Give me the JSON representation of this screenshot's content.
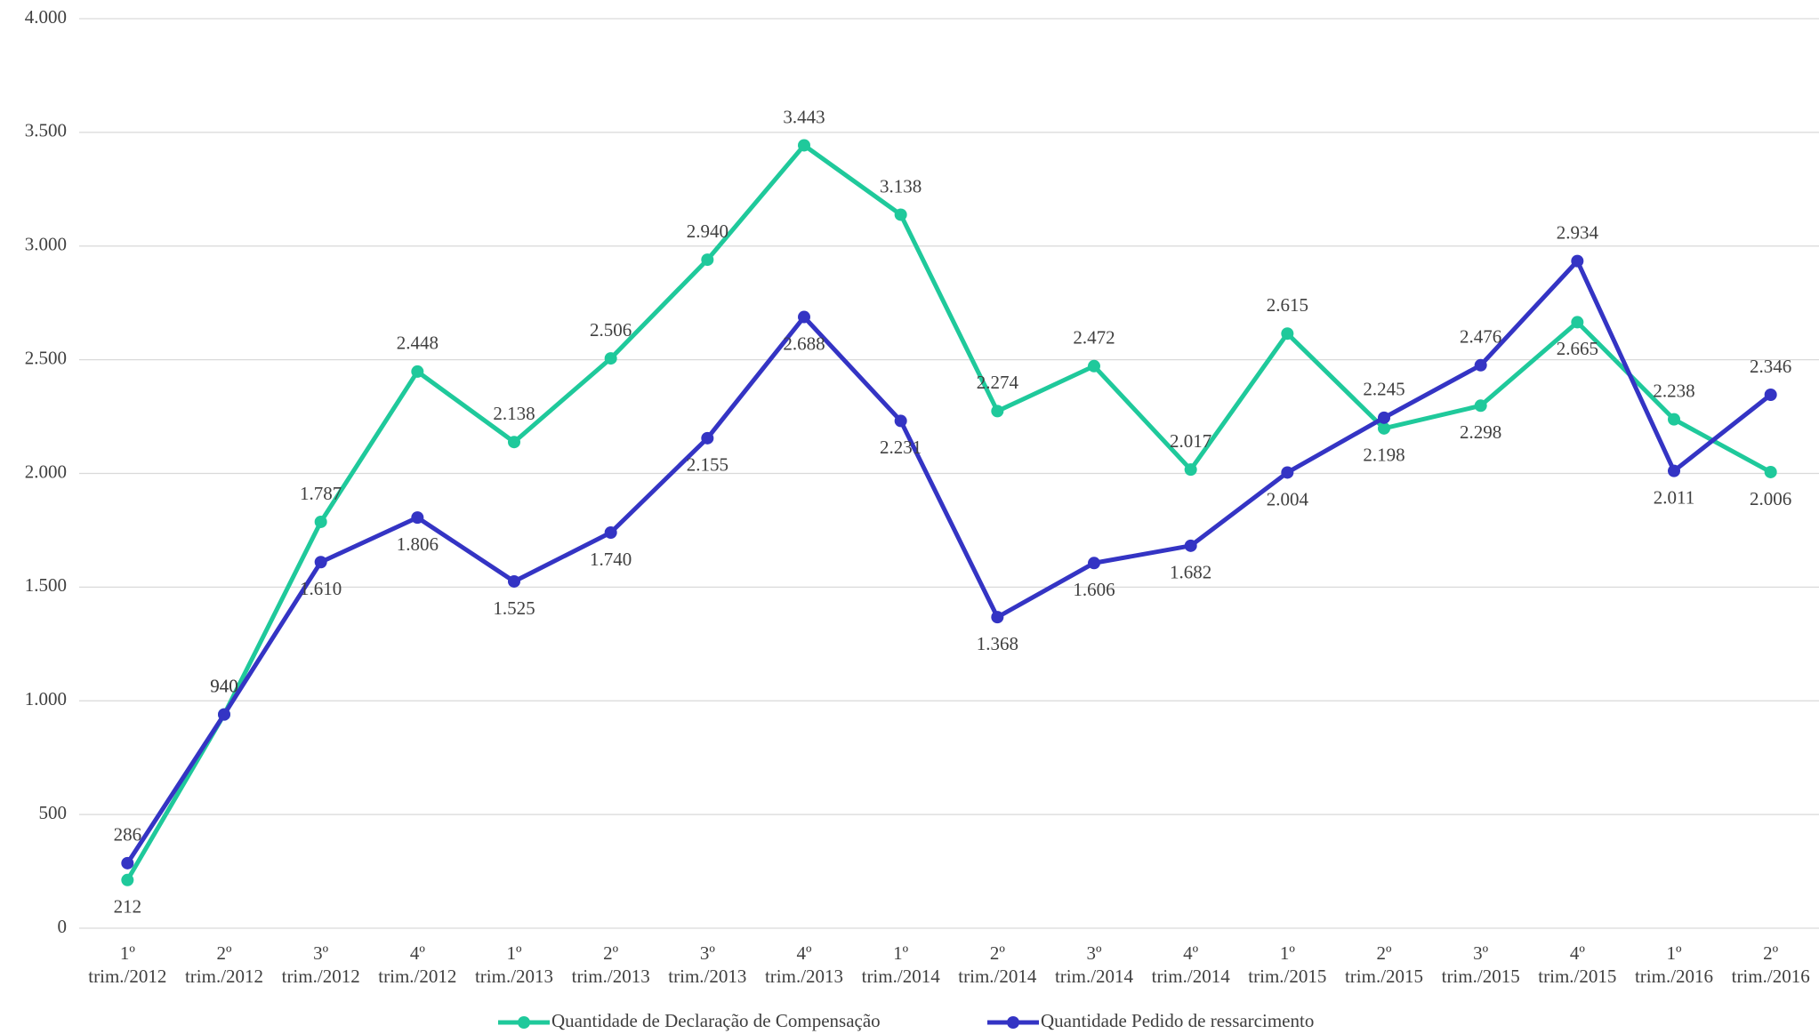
{
  "chart_data": {
    "type": "line",
    "categories": [
      "1º trim./2012",
      "2º trim./2012",
      "3º trim./2012",
      "4º trim./2012",
      "1º trim./2013",
      "2º trim./2013",
      "3º trim./2013",
      "4º trim./2013",
      "1º trim./2014",
      "2º trim./2014",
      "3º trim./2014",
      "4º trim./2014",
      "1º trim./2015",
      "2º trim./2015",
      "3º trim./2015",
      "4º trim./2015",
      "1º trim./2016",
      "2º trim./2016"
    ],
    "series": [
      {
        "name": "Quantidade de Declaração de Compensação",
        "color": "#1fc99b",
        "values": [
          212,
          940,
          1787,
          2448,
          2138,
          2506,
          2940,
          3443,
          3138,
          2274,
          2472,
          2017,
          2615,
          2198,
          2298,
          2665,
          2238,
          2006
        ],
        "value_labels": [
          "212",
          "940",
          "1.787",
          "2.448",
          "2.138",
          "2.506",
          "2.940",
          "3.443",
          "3.138",
          "2.274",
          "2.472",
          "2.017",
          "2.615",
          "2.198",
          "2.298",
          "2.665",
          "2.238",
          "2.006"
        ]
      },
      {
        "name": "Quantidade Pedido de ressarcimento",
        "color": "#3434c4",
        "values": [
          286,
          940,
          1610,
          1806,
          1525,
          1740,
          2155,
          2688,
          2231,
          1368,
          1606,
          1682,
          2004,
          2245,
          2476,
          2934,
          2011,
          2346
        ],
        "value_labels": [
          "286",
          "940",
          "1.610",
          "1.806",
          "1.525",
          "1.740",
          "2.155",
          "2.688",
          "2.231",
          "1.368",
          "1.606",
          "1.682",
          "2.004",
          "2.245",
          "2.476",
          "2.934",
          "2.011",
          "2.346"
        ]
      }
    ],
    "ylim": [
      0,
      4000
    ],
    "yticks": [
      0,
      500,
      {
        "value": 1000,
        "label": "1.000"
      },
      {
        "value": 1500,
        "label": "1.500"
      },
      {
        "value": 2000,
        "label": "2.000"
      },
      {
        "value": 2500,
        "label": "2.500"
      },
      {
        "value": 3000,
        "label": "3.000"
      },
      {
        "value": 3500,
        "label": "3.500"
      },
      {
        "value": 4000,
        "label": "4.000"
      }
    ],
    "grid": true,
    "legend": "bottom"
  }
}
